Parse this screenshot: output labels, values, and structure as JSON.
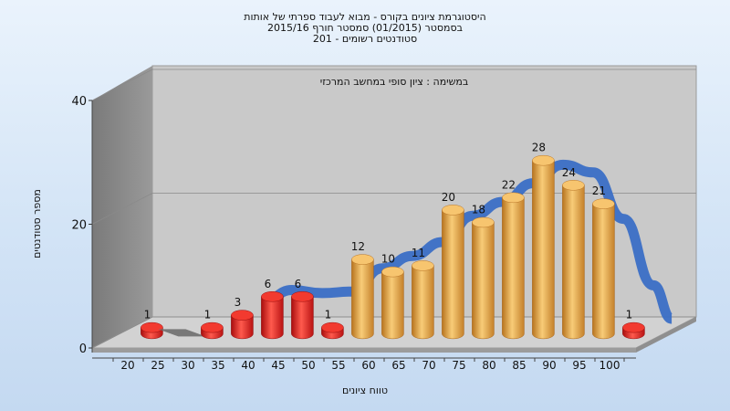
{
  "chart_data": {
    "type": "bar",
    "title_lines": [
      "היסטוגרמת ציונים בקורס - מבוא לעבוד ספרתי של אותות",
      "בסמסטר   (01/2015)  סמסטר חורף  2015/16",
      "סטודנטים רשומים - 201"
    ],
    "subtitle": "במשימה : ציון סופי במחשב המרכזי",
    "xlabel": "טווח ציונים",
    "ylabel": "מספר סטודנטים",
    "ylim": [
      0,
      40
    ],
    "yticks": [
      0,
      20,
      40
    ],
    "grid": true,
    "categories": [
      "20",
      "25",
      "30",
      "35",
      "40",
      "45",
      "50",
      "55",
      "60",
      "65",
      "70",
      "75",
      "80",
      "85",
      "90",
      "95",
      "100"
    ],
    "values": [
      1,
      0,
      1,
      3,
      6,
      6,
      1,
      12,
      10,
      11,
      20,
      18,
      22,
      28,
      24,
      21,
      1
    ],
    "value_labels": [
      "1",
      "",
      "1",
      "3",
      "6",
      "6",
      "1",
      "12",
      "10",
      "11",
      "20",
      "18",
      "22",
      "28",
      "24",
      "21",
      "1"
    ],
    "colors": {
      "fail": "#e3201b",
      "pass": "#e9a440",
      "curve": "#3b6fc6",
      "wall": "#8a8a8a",
      "plot_bg": "#c8c8c8"
    }
  }
}
